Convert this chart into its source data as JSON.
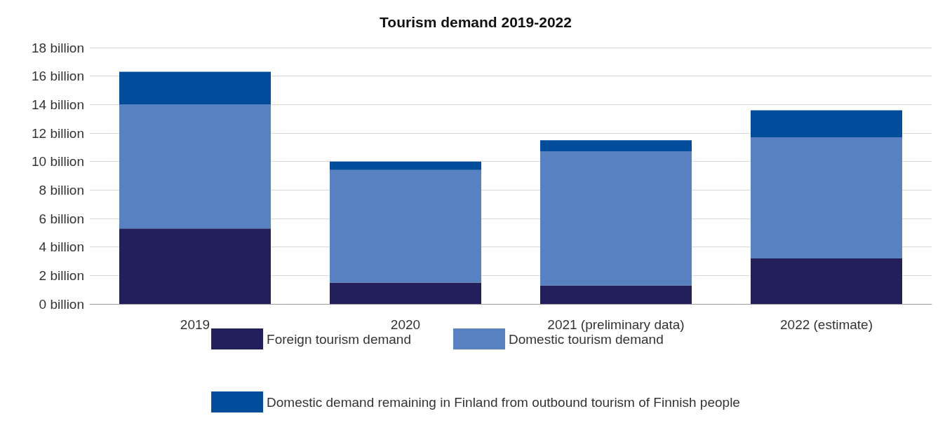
{
  "chart_data": {
    "type": "bar",
    "title": "Tourism demand 2019-2022",
    "categories": [
      "2019",
      "2020",
      "2021 (preliminary data)",
      "2022 (estimate)"
    ],
    "stacked": true,
    "series": [
      {
        "name": "Foreign tourism demand",
        "color": "#221f5a",
        "values": [
          5.3,
          1.5,
          1.3,
          3.2
        ]
      },
      {
        "name": "Domestic tourism demand",
        "color": "#5881c1",
        "values": [
          8.7,
          7.9,
          9.4,
          8.5
        ]
      },
      {
        "name": "Domestic demand remaining in Finland from outbound tourism of Finnish people",
        "color": "#014d9b",
        "values": [
          2.3,
          0.6,
          0.8,
          1.9
        ]
      }
    ],
    "ylim": [
      0,
      18
    ],
    "yticks": [
      {
        "value": 0,
        "label": "0 billion"
      },
      {
        "value": 2,
        "label": "2 billion"
      },
      {
        "value": 4,
        "label": "4 billion"
      },
      {
        "value": 6,
        "label": "6 billion"
      },
      {
        "value": 8,
        "label": "8 billion"
      },
      {
        "value": 10,
        "label": "10 billion"
      },
      {
        "value": 12,
        "label": "12 billion"
      },
      {
        "value": 14,
        "label": "14 billion"
      },
      {
        "value": 16,
        "label": "16 billion"
      },
      {
        "value": 18,
        "label": "18 billion"
      }
    ],
    "grid": "y",
    "legend": "bottom"
  }
}
